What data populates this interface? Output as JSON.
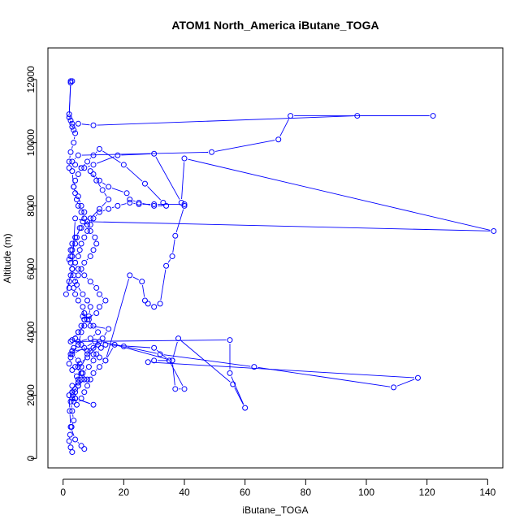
{
  "chart_data": {
    "type": "line",
    "title": "ATOM1 North_America iButane_TOGA",
    "xlabel": "iButane_TOGA",
    "ylabel": "Altitude (m)",
    "xlim": [
      -5,
      145
    ],
    "ylim": [
      -300,
      13000
    ],
    "xticks": [
      0,
      20,
      40,
      60,
      80,
      100,
      120,
      140
    ],
    "yticks": [
      0,
      2000,
      4000,
      6000,
      8000,
      10000,
      12000
    ],
    "grid": false,
    "legend": "none",
    "marker": "open-circle",
    "color": "#0000ff",
    "series": [
      {
        "x": [
          3.0,
          2.5,
          2.0,
          2.3,
          2.8,
          3.5,
          3.0,
          2.5,
          3.2,
          4.0,
          5.0,
          4.5,
          3.0,
          2.0,
          2.5,
          3.0,
          10.0,
          11.5,
          9.0,
          8.0,
          5.5,
          4.0,
          6.0,
          7.0,
          5.0,
          3.0,
          4.0,
          10.0,
          4.0,
          3.0,
          3.0,
          8.0,
          6.0,
          5.0,
          5.0,
          3.0,
          7.0,
          10.5,
          12.5,
          11.0,
          10.0,
          8.5,
          6.5,
          6.0,
          5.0,
          4.0,
          3.0,
          3.5,
          4.5,
          6.0,
          7.0,
          8.0,
          9.0,
          10.0,
          12.0,
          14.0,
          17.0,
          36.0,
          37.0,
          40.0,
          35.0,
          30.0,
          14.0,
          13.0,
          15.0,
          9.0,
          8.5,
          6.5,
          7.0,
          8.0,
          10.0,
          11.5,
          9.0,
          5.0,
          3.5,
          3.0,
          2.5,
          5.0,
          6.0,
          7.0,
          6.5,
          5.0,
          4.0,
          3.5,
          4.0,
          5.0,
          6.0,
          7.0,
          9.0,
          10.0,
          11.0,
          10.5,
          9.0,
          8.0,
          7.0,
          6.0,
          5.0,
          4.5,
          4.0,
          3.5,
          4.0,
          5.0,
          6.0,
          8.0,
          10.0,
          12.0,
          20.0,
          27.0,
          33.0,
          34.0,
          30.0,
          25.0,
          22.0,
          21.0,
          15.0,
          12.0,
          10.0,
          9.0,
          11.0,
          13.0,
          15.0,
          12.0,
          9.0,
          6.0,
          4.0,
          3.0,
          2.5,
          3.0,
          4.0,
          5.0,
          7.0,
          9.0,
          11.0,
          12.0,
          14.0,
          12.0,
          11.0,
          7.0,
          6.0,
          5.0,
          4.0,
          6.0,
          8.0,
          10.0,
          12.0,
          14.0,
          22.0,
          26.0,
          27.0,
          28.0,
          30.0,
          32.0,
          34.0,
          36.0,
          37.0,
          40.0,
          40.0,
          30.0,
          25.0,
          22.0,
          18.0,
          15.0,
          12.0,
          10.0,
          9.0,
          8.0,
          7.0,
          6.0,
          5.5,
          5.0,
          4.0,
          3.0,
          2.5,
          2.0,
          2.0,
          1.0,
          3.0,
          4.0,
          8.0,
          142.0,
          40.0,
          39.0,
          30.0,
          18.0,
          10.0,
          7.0,
          4.0,
          3.0,
          5.0,
          49.0,
          71.0,
          75.0,
          122.0,
          97.0,
          10.0,
          5.0,
          3.5,
          3.0,
          2.5,
          2.0,
          2.5,
          3.0,
          2.5,
          2.0,
          3.0,
          4.0,
          3.5,
          2.5,
          2.0,
          2.0,
          3.0,
          3.5,
          5.0,
          6.0,
          7.0,
          6.5,
          5.5,
          4.5,
          4.0,
          3.0,
          2.5,
          2.0,
          2.5,
          3.0,
          3.5,
          4.5,
          6.5,
          8.0,
          9.0,
          8.5,
          7.0,
          5.0,
          3.0,
          2.5,
          55.0,
          55.0,
          60.0,
          56.0,
          38.0,
          36.0,
          30.0,
          28.0,
          117.0,
          109.0,
          63.0,
          32.0,
          20.0,
          12.0,
          8.0,
          6.0,
          5.0,
          2.0,
          2.2,
          2.5,
          4.0,
          6.0,
          7.0
        ],
        "y": [
          200,
          350,
          550,
          750,
          1000,
          1200,
          1500,
          1800,
          2000,
          2200,
          2400,
          2600,
          2800,
          3000,
          3200,
          3400,
          3500,
          3600,
          3400,
          3200,
          3000,
          2900,
          2700,
          2500,
          2300,
          2100,
          1900,
          1700,
          1900,
          2100,
          2300,
          2500,
          2700,
          2900,
          3100,
          3300,
          3500,
          3700,
          3500,
          3300,
          3100,
          2900,
          2700,
          2500,
          2300,
          2100,
          1900,
          1800,
          1700,
          1900,
          2100,
          2300,
          2500,
          2700,
          2900,
          3100,
          3600,
          3100,
          2200,
          2200,
          3100,
          3500,
          3600,
          3800,
          4100,
          4200,
          4400,
          4500,
          4600,
          4400,
          4200,
          4000,
          3800,
          3700,
          3500,
          3400,
          3300,
          3600,
          4000,
          4400,
          4800,
          5000,
          5200,
          5400,
          5600,
          5800,
          6000,
          6200,
          6400,
          6600,
          6800,
          7000,
          7200,
          7400,
          7600,
          7800,
          8000,
          8200,
          8400,
          8600,
          8800,
          9000,
          9200,
          9400,
          9600,
          9800,
          9300,
          8700,
          8100,
          8000,
          8000,
          8100,
          8200,
          8400,
          8600,
          8800,
          9000,
          9100,
          8800,
          8500,
          8200,
          7900,
          7600,
          7300,
          7000,
          6800,
          6600,
          6400,
          6200,
          6000,
          5800,
          5600,
          5400,
          5200,
          5000,
          4800,
          4600,
          4400,
          4200,
          4000,
          3800,
          3600,
          3400,
          3300,
          3200,
          3100,
          5800,
          5600,
          5000,
          4900,
          4800,
          4900,
          6100,
          6400,
          7050,
          8000,
          8050,
          8050,
          8050,
          8100,
          8000,
          7900,
          7800,
          7600,
          7400,
          7200,
          7000,
          6800,
          6600,
          6400,
          6200,
          6000,
          5800,
          5600,
          5400,
          5200,
          6000,
          7600,
          7500,
          7200,
          9500,
          8100,
          9650,
          9600,
          9300,
          9200,
          9300,
          9400,
          9600,
          9700,
          10100,
          10850,
          10850,
          10850,
          10550,
          10600,
          10400,
          10600,
          10700,
          10900,
          11950,
          11950,
          11900,
          10800,
          10500,
          10300,
          10000,
          9700,
          9400,
          9200,
          9100,
          8600,
          8300,
          8000,
          7800,
          7500,
          7300,
          7000,
          6800,
          6600,
          6400,
          6300,
          6200,
          6000,
          5800,
          5500,
          5200,
          5000,
          4800,
          4500,
          4200,
          4000,
          3750,
          3700,
          3750,
          2700,
          1600,
          2350,
          3800,
          3100,
          3100,
          3050,
          2550,
          2250,
          2900,
          3300,
          3550,
          3700,
          3300,
          2900,
          2500,
          2000,
          1500,
          1000,
          600,
          400,
          300
        ]
      }
    ]
  }
}
